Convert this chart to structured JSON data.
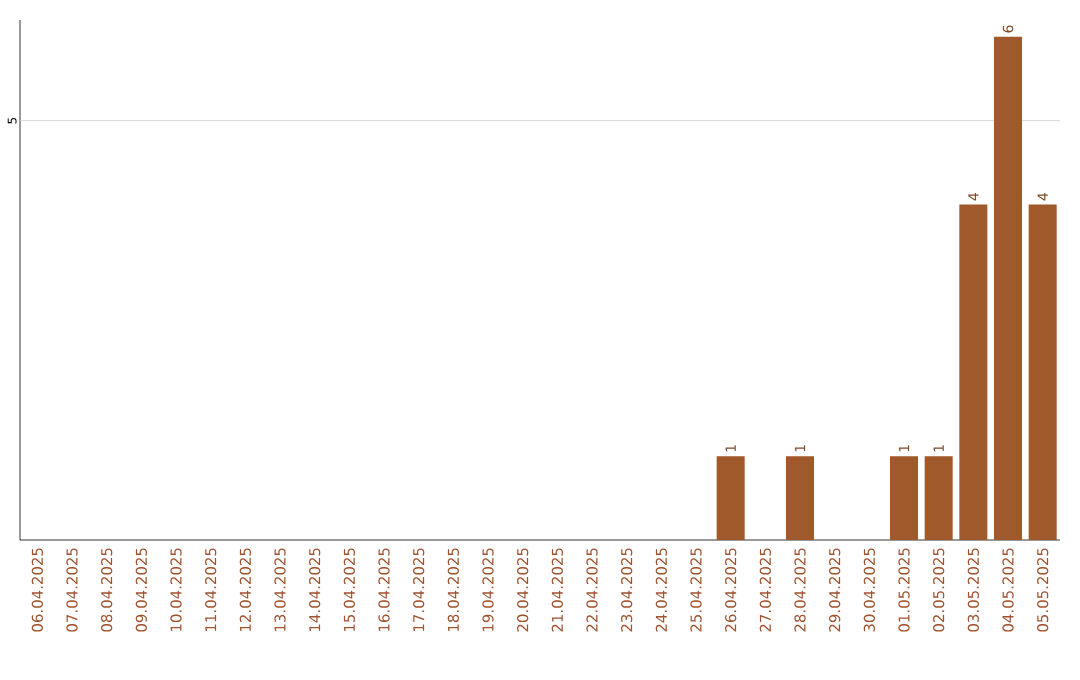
{
  "chart_data": {
    "type": "bar",
    "categories": [
      "06.04.2025",
      "07.04.2025",
      "08.04.2025",
      "09.04.2025",
      "10.04.2025",
      "11.04.2025",
      "12.04.2025",
      "13.04.2025",
      "14.04.2025",
      "15.04.2025",
      "16.04.2025",
      "17.04.2025",
      "18.04.2025",
      "19.04.2025",
      "20.04.2025",
      "21.04.2025",
      "22.04.2025",
      "23.04.2025",
      "24.04.2025",
      "25.04.2025",
      "26.04.2025",
      "27.04.2025",
      "28.04.2025",
      "29.04.2025",
      "30.04.2025",
      "01.05.2025",
      "02.05.2025",
      "03.05.2025",
      "04.05.2025",
      "05.05.2025"
    ],
    "values": [
      null,
      null,
      null,
      null,
      null,
      null,
      null,
      null,
      null,
      null,
      null,
      null,
      null,
      null,
      null,
      null,
      null,
      null,
      null,
      null,
      1,
      null,
      1,
      null,
      null,
      1,
      1,
      4,
      6,
      4
    ],
    "data_labels": true,
    "color": "#a0592a",
    "ylim": [
      0,
      6.2
    ],
    "ref_lines": [
      {
        "axis": "y",
        "value": 5,
        "label": "5",
        "color": "#cccccc"
      }
    ]
  }
}
